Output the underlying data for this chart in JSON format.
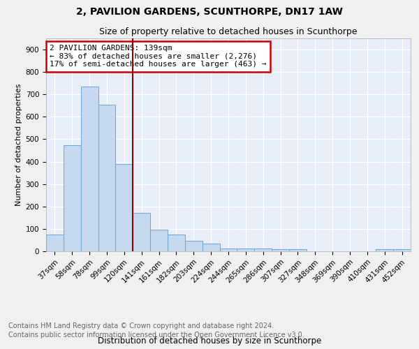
{
  "title": "2, PAVILION GARDENS, SCUNTHORPE, DN17 1AW",
  "subtitle": "Size of property relative to detached houses in Scunthorpe",
  "xlabel": "Distribution of detached houses by size in Scunthorpe",
  "ylabel": "Number of detached properties",
  "footer_line1": "Contains HM Land Registry data © Crown copyright and database right 2024.",
  "footer_line2": "Contains public sector information licensed under the Open Government Licence v3.0.",
  "annotation_line1": "2 PAVILION GARDENS: 139sqm",
  "annotation_line2": "← 83% of detached houses are smaller (2,276)",
  "annotation_line3": "17% of semi-detached houses are larger (463) →",
  "bar_color": "#c5d8f0",
  "bar_edge_color": "#6aaad4",
  "vline_color": "#8b0000",
  "categories": [
    "37sqm",
    "58sqm",
    "78sqm",
    "99sqm",
    "120sqm",
    "141sqm",
    "161sqm",
    "182sqm",
    "203sqm",
    "224sqm",
    "244sqm",
    "265sqm",
    "286sqm",
    "307sqm",
    "327sqm",
    "348sqm",
    "369sqm",
    "390sqm",
    "410sqm",
    "431sqm",
    "452sqm"
  ],
  "values": [
    75,
    475,
    735,
    655,
    390,
    170,
    98,
    76,
    47,
    33,
    13,
    13,
    11,
    8,
    8,
    0,
    0,
    0,
    0,
    9,
    9
  ],
  "ylim": [
    0,
    950
  ],
  "yticks": [
    0,
    100,
    200,
    300,
    400,
    500,
    600,
    700,
    800,
    900
  ],
  "background_color": "#e8eef8",
  "grid_color": "#ffffff",
  "fig_background": "#f0f0f0",
  "title_fontsize": 10,
  "subtitle_fontsize": 9,
  "xlabel_fontsize": 8.5,
  "ylabel_fontsize": 8,
  "tick_fontsize": 7.5,
  "annotation_fontsize": 8,
  "footer_fontsize": 7
}
